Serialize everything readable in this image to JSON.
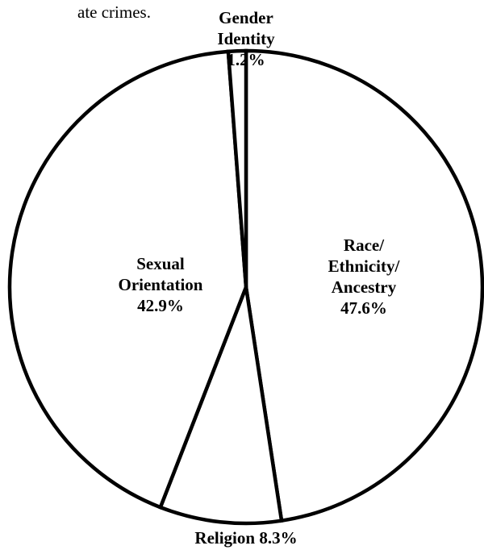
{
  "caption_fragment": "ate crimes.",
  "chart_data": {
    "type": "pie",
    "title": "",
    "start": "top",
    "direction": "clockwise",
    "fill_color": "#ffffff",
    "stroke_color": "#000000",
    "slices": [
      {
        "lines": [
          "Race/",
          "Ethnicity/",
          "Ancestry",
          "47.6%"
        ],
        "value": 47.6
      },
      {
        "lines": [
          "Religion 8.3%"
        ],
        "value": 8.3
      },
      {
        "lines": [
          "Sexual",
          "Orientation",
          "42.9%"
        ],
        "value": 42.9
      },
      {
        "lines": [
          "Gender",
          "Identity",
          "1.2%"
        ],
        "value": 1.2
      }
    ]
  }
}
